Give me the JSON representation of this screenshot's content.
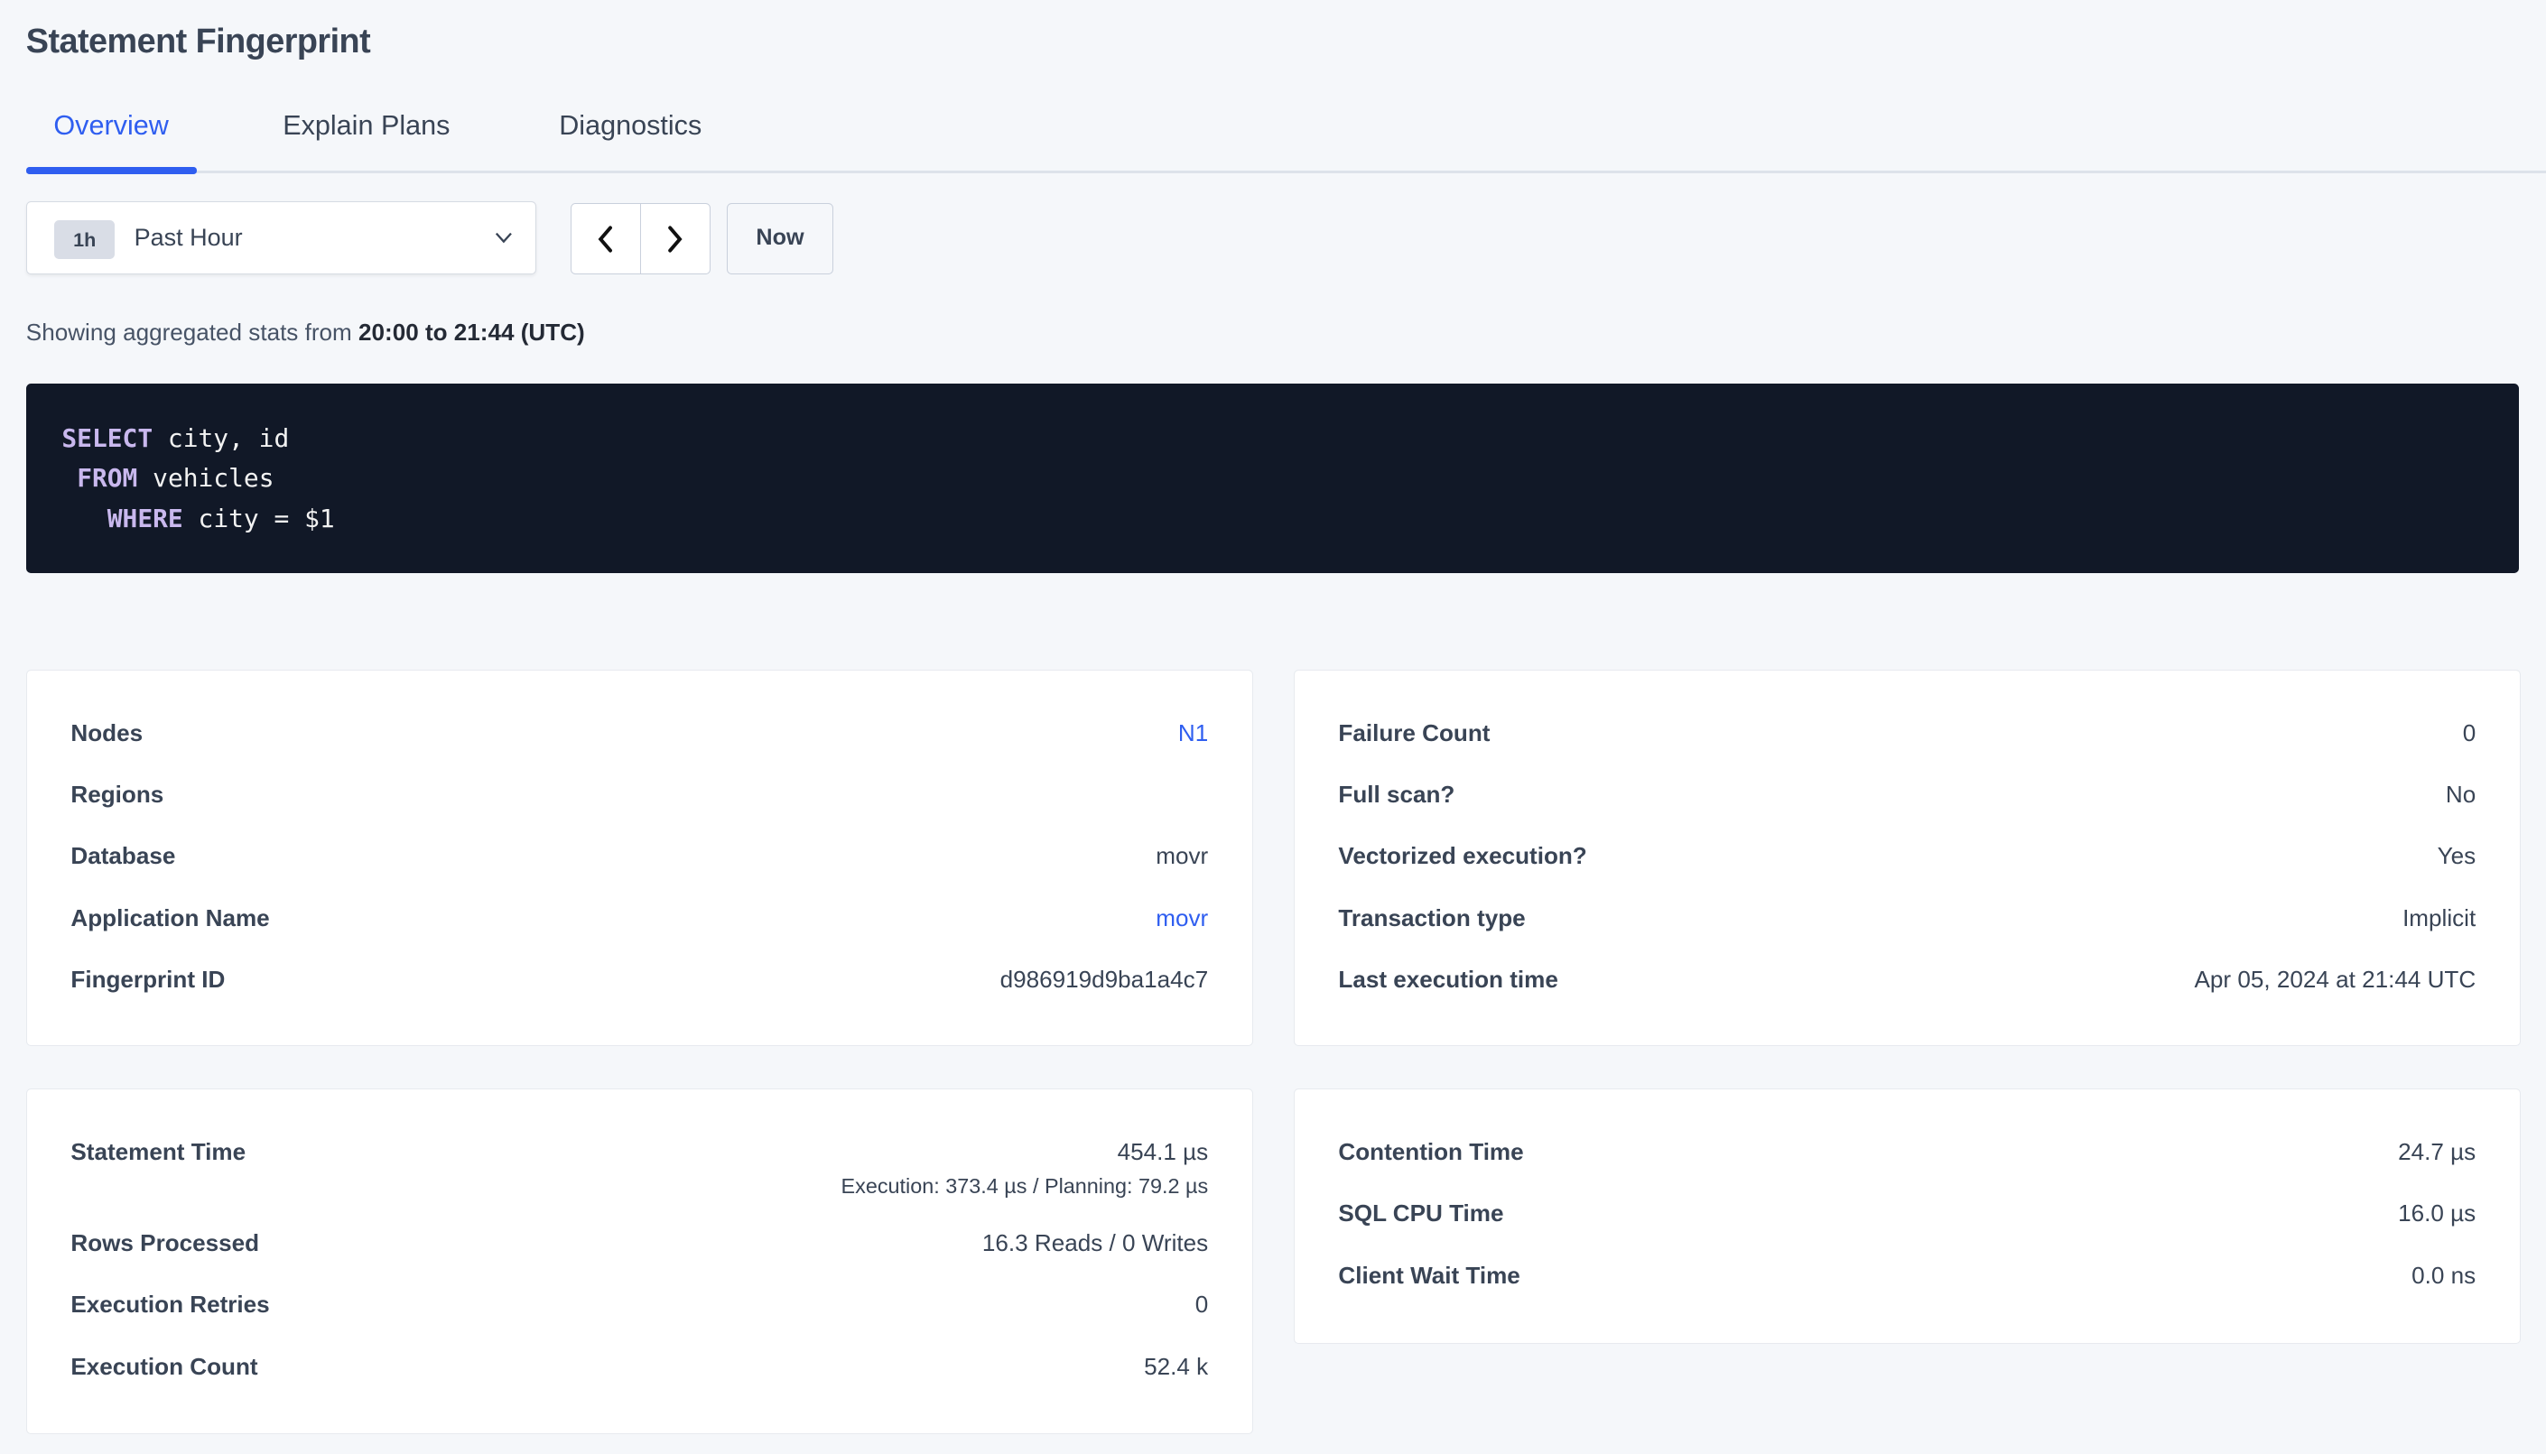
{
  "page": {
    "title": "Statement Fingerprint"
  },
  "tabs": [
    {
      "label": "Overview",
      "active": true
    },
    {
      "label": "Explain Plans"
    },
    {
      "label": "Diagnostics"
    }
  ],
  "time_range": {
    "badge": "1h",
    "label": "Past Hour",
    "prev_icon": "chevron-left-icon",
    "next_icon": "chevron-right-icon",
    "now_label": "Now"
  },
  "showing": {
    "prefix": "Showing aggregated stats from ",
    "range": "20:00 to 21:44 (UTC)"
  },
  "sql": {
    "lines": [
      {
        "indent": "",
        "keyword": "SELECT",
        "rest": " city, id"
      },
      {
        "indent": " ",
        "keyword": "FROM",
        "rest": " vehicles"
      },
      {
        "indent": "   ",
        "keyword": "WHERE",
        "rest": " city = $1"
      }
    ]
  },
  "details_left": [
    {
      "label": "Nodes",
      "value": "N1",
      "link": true
    },
    {
      "label": "Regions",
      "value": ""
    },
    {
      "label": "Database",
      "value": "movr"
    },
    {
      "label": "Application Name",
      "value": "movr",
      "link": true
    },
    {
      "label": "Fingerprint ID",
      "value": "d986919d9ba1a4c7"
    }
  ],
  "details_right": [
    {
      "label": "Failure Count",
      "value": "0"
    },
    {
      "label": "Full scan?",
      "value": "No"
    },
    {
      "label": "Vectorized execution?",
      "value": "Yes"
    },
    {
      "label": "Transaction type",
      "value": "Implicit"
    },
    {
      "label": "Last execution time",
      "value": "Apr 05, 2024 at 21:44 UTC"
    }
  ],
  "stats_left": [
    {
      "label": "Statement Time",
      "value": "454.1 µs",
      "sub": "Execution: 373.4 µs / Planning: 79.2 µs"
    },
    {
      "label": "Rows Processed",
      "value": "16.3 Reads / 0 Writes"
    },
    {
      "label": "Execution Retries",
      "value": "0"
    },
    {
      "label": "Execution Count",
      "value": "52.4 k"
    }
  ],
  "stats_right": [
    {
      "label": "Contention Time",
      "value": "24.7 µs"
    },
    {
      "label": "SQL CPU Time",
      "value": "16.0 µs"
    },
    {
      "label": "Client Wait Time",
      "value": "0.0 ns"
    }
  ],
  "colors": {
    "accent": "#2f5ef0",
    "code_bg": "#111827",
    "keyword": "#c9b8ee",
    "background": "#f5f7fa"
  }
}
